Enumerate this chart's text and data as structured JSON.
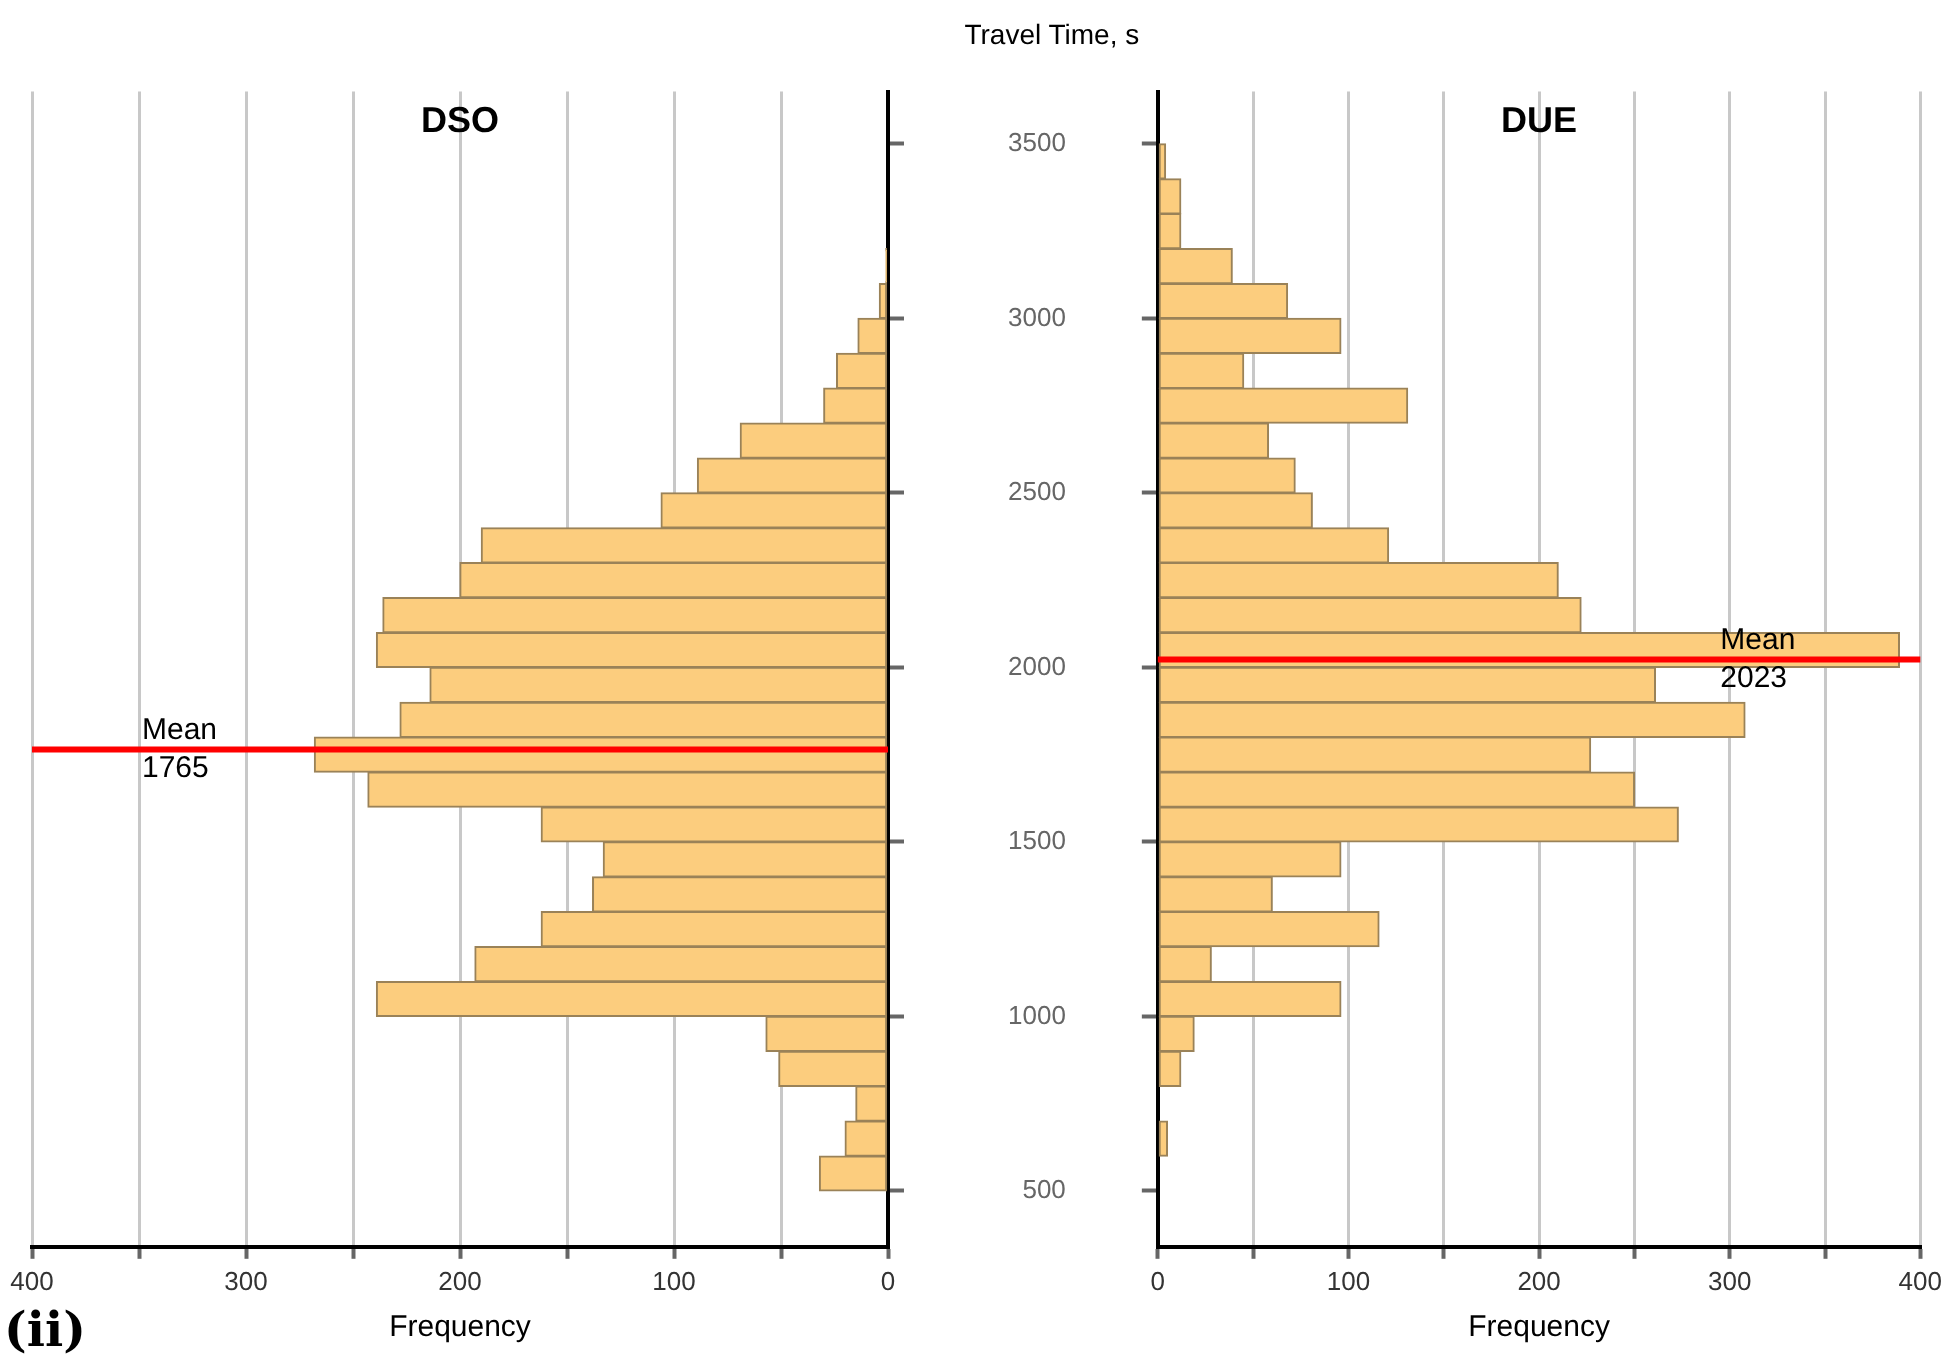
{
  "chart_data": [
    {
      "type": "histogram",
      "orientation": "horizontal",
      "title": "DSO",
      "xlabel": "Frequency",
      "color": "#fccd7e",
      "bins": [
        500,
        600,
        700,
        800,
        900,
        1000,
        1100,
        1200,
        1300,
        1400,
        1500,
        1600,
        1700,
        1800,
        1900,
        2000,
        2100,
        2200,
        2300,
        2400,
        2500,
        2600,
        2700,
        2800,
        2900,
        3000,
        3100,
        3200
      ],
      "values": [
        32,
        20,
        15,
        51,
        57,
        239,
        193,
        162,
        138,
        133,
        162,
        243,
        268,
        228,
        214,
        239,
        236,
        200,
        190,
        106,
        89,
        69,
        30,
        24,
        14,
        4,
        1
      ],
      "xlim": [
        400,
        0
      ],
      "xticks": [
        0,
        {
          "value": 50,
          "label": null
        },
        100,
        {
          "value": 150,
          "label": null
        },
        200,
        {
          "value": 250,
          "label": null
        },
        300,
        {
          "value": 350,
          "label": null
        },
        400
      ],
      "ylim": [
        340,
        3650
      ],
      "yticks": [
        500,
        1000,
        1500,
        2000,
        2500,
        3000,
        3500
      ],
      "grid": "x",
      "tick_labels": "x",
      "legend": false,
      "ref_lines": [
        {
          "axis": "y",
          "value": 1765,
          "label": "Mean\n1765",
          "color": "#ff0000"
        }
      ],
      "annotations": [
        "(ii)"
      ]
    },
    {
      "type": "histogram",
      "orientation": "horizontal",
      "title": "DUE",
      "xlabel": "Frequency",
      "ylabel": "Travel Time, s",
      "color": "#fccd7e",
      "bins": [
        600,
        700,
        800,
        900,
        1000,
        1100,
        1200,
        1300,
        1400,
        1500,
        1600,
        1700,
        1800,
        1900,
        2000,
        2100,
        2200,
        2300,
        2400,
        2500,
        2600,
        2700,
        2800,
        2900,
        3000,
        3100,
        3200,
        3300,
        3400,
        3500
      ],
      "values": [
        5,
        0,
        12,
        19,
        96,
        28,
        116,
        60,
        96,
        273,
        250,
        227,
        308,
        261,
        389,
        222,
        210,
        121,
        81,
        72,
        58,
        131,
        45,
        96,
        68,
        39,
        12,
        12,
        4
      ],
      "xlim": [
        0,
        400
      ],
      "xticks": [
        0,
        {
          "value": 50,
          "label": null
        },
        100,
        {
          "value": 150,
          "label": null
        },
        200,
        {
          "value": 250,
          "label": null
        },
        300,
        {
          "value": 350,
          "label": null
        },
        400
      ],
      "ylim": [
        340,
        3650
      ],
      "yticks": [
        500,
        1000,
        1500,
        2000,
        2500,
        3000,
        3500
      ],
      "grid": "x",
      "legend": false,
      "ref_lines": [
        {
          "axis": "y",
          "value": 2023,
          "label": "Mean\n2023",
          "color": "#ff0000"
        }
      ]
    }
  ]
}
